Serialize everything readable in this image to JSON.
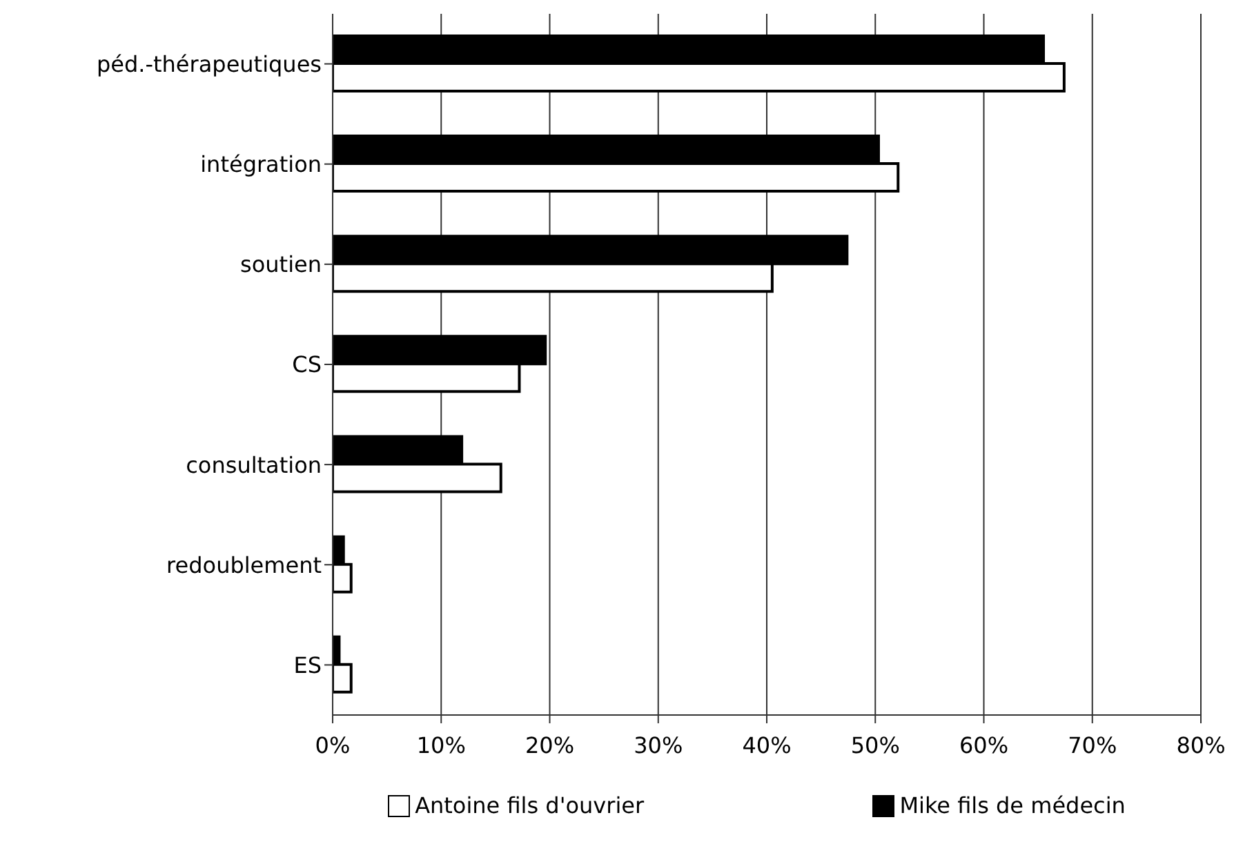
{
  "chart_data": {
    "type": "bar",
    "orientation": "horizontal",
    "categories": [
      "péd.-thérapeutiques",
      "intégration",
      "soutien",
      "CS",
      "consultation",
      "redoublement",
      "ES"
    ],
    "series": [
      {
        "name": "Antoine fils d'ouvrier",
        "color": "#ffffff",
        "values": [
          67.4,
          52.1,
          40.5,
          17.2,
          15.5,
          1.7,
          1.7
        ]
      },
      {
        "name": "Mike fils de médecin",
        "color": "#000000",
        "values": [
          65.5,
          50.3,
          47.4,
          19.6,
          11.9,
          1.0,
          0.6
        ]
      }
    ],
    "xlim": [
      0,
      80
    ],
    "xticks": [
      {
        "value": 0,
        "label": "0%"
      },
      {
        "value": 10,
        "label": "10%"
      },
      {
        "value": 20,
        "label": "20%"
      },
      {
        "value": 30,
        "label": "30%"
      },
      {
        "value": 40,
        "label": "40%"
      },
      {
        "value": 50,
        "label": "50%"
      },
      {
        "value": 60,
        "label": "60%"
      },
      {
        "value": 70,
        "label": "70%"
      },
      {
        "value": 80,
        "label": "80%"
      }
    ],
    "grid": "x",
    "legend": "bottom"
  }
}
